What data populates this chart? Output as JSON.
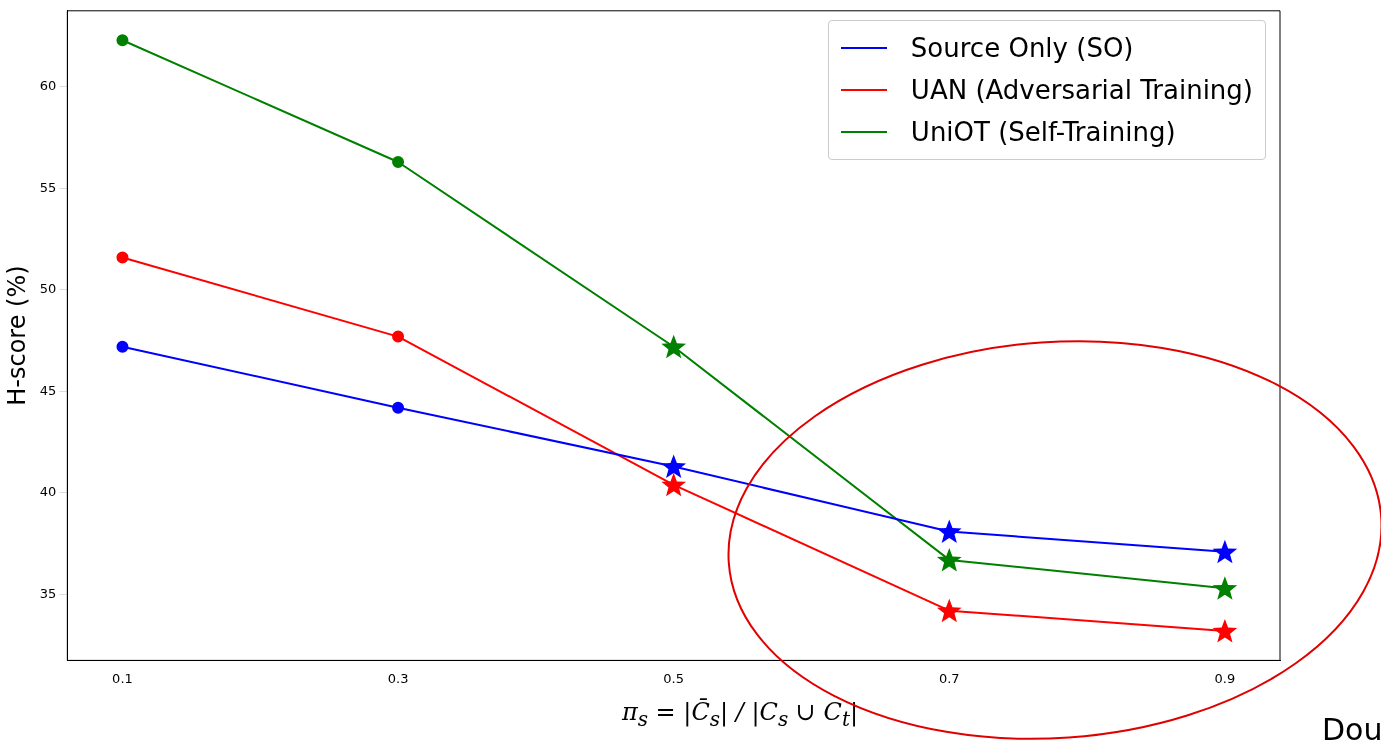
{
  "chart_data": {
    "type": "line",
    "xlabel": "π$_{s}$ = |C̄$_{s}$| / |C$_{s}$ ∪ C$_{t}$|",
    "ylabel": "H-score (%)",
    "x": [
      0.1,
      0.3,
      0.5,
      0.7,
      0.9
    ],
    "xlim": [
      0.06,
      0.94
    ],
    "xticks": [
      0.1,
      0.3,
      0.5,
      0.7,
      0.9
    ],
    "ylim": [
      31.75,
      63.75
    ],
    "yticks": [
      35,
      40,
      45,
      50,
      55,
      60
    ],
    "marker": [
      "circle",
      "circle",
      "star",
      "star",
      "star"
    ],
    "legend": "top right",
    "grid": false,
    "annotations": [
      "Dou"
    ],
    "series": [
      {
        "name": "Source Only (SO)",
        "color": "#0000ff",
        "values": [
          47.2,
          44.2,
          41.3,
          38.1,
          37.1
        ]
      },
      {
        "name": "UAN (Adversarial Training)",
        "color": "#ff0000",
        "values": [
          51.6,
          47.7,
          40.4,
          34.2,
          33.2
        ]
      },
      {
        "name": "UniOT (Self-Training)",
        "color": "#008000",
        "values": [
          62.3,
          56.3,
          47.2,
          36.7,
          35.3
        ]
      }
    ]
  }
}
